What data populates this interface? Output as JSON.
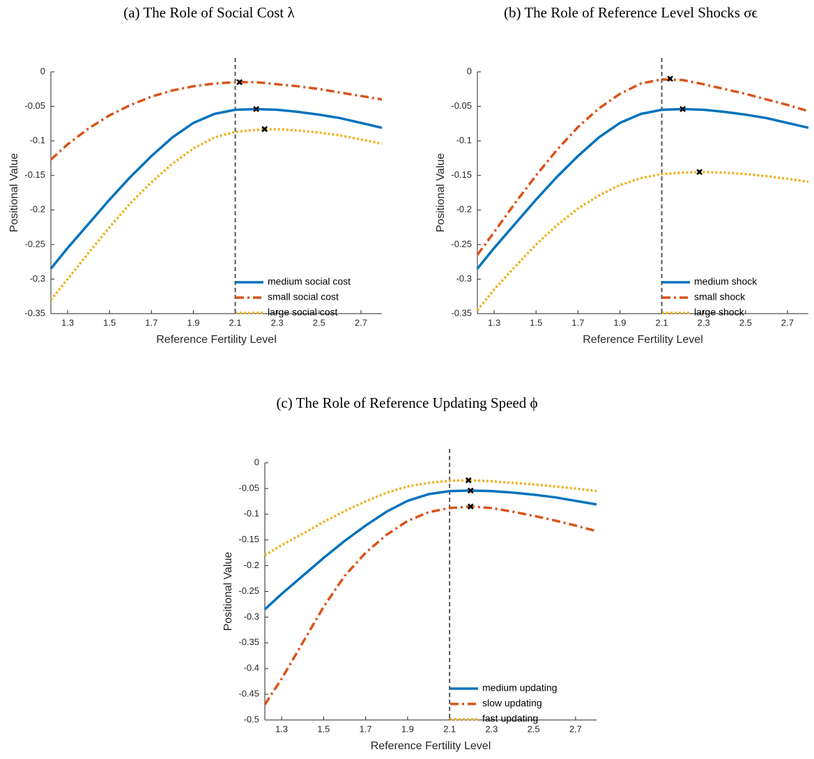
{
  "chart_data": [
    {
      "type": "line",
      "title": "(a) The Role of Social Cost λ",
      "x_label": "Reference Fertility Level",
      "y_label": "Positional Value",
      "x": [
        1.22,
        1.3,
        1.4,
        1.5,
        1.6,
        1.7,
        1.8,
        1.9,
        2.0,
        2.1,
        2.2,
        2.3,
        2.4,
        2.5,
        2.6,
        2.7,
        2.8
      ],
      "xlim": [
        1.22,
        2.8
      ],
      "xticks": [
        1.3,
        1.5,
        1.7,
        1.9,
        2.1,
        2.3,
        2.5,
        2.7
      ],
      "ylim": [
        -0.35,
        0
      ],
      "yticks": [
        0,
        -0.05,
        -0.1,
        -0.15,
        -0.2,
        -0.25,
        -0.3,
        -0.35
      ],
      "vline": 2.1,
      "legend": "lower right",
      "series": [
        {
          "name": "medium social cost",
          "color": "#0072bd",
          "dash": "solid",
          "values": [
            -0.285,
            -0.255,
            -0.22,
            -0.185,
            -0.152,
            -0.122,
            -0.095,
            -0.074,
            -0.061,
            -0.055,
            -0.054,
            -0.055,
            -0.058,
            -0.062,
            -0.067,
            -0.074,
            -0.081
          ],
          "peak_x": 2.2,
          "peak_y": -0.054
        },
        {
          "name": "small social cost",
          "color": "#d95319",
          "dash": "dashdot",
          "values": [
            -0.127,
            -0.105,
            -0.082,
            -0.063,
            -0.048,
            -0.036,
            -0.027,
            -0.021,
            -0.017,
            -0.015,
            -0.015,
            -0.018,
            -0.021,
            -0.025,
            -0.03,
            -0.035,
            -0.04
          ],
          "peak_x": 2.12,
          "peak_y": -0.015
        },
        {
          "name": "large social cost",
          "color": "#edb120",
          "dash": "dotted",
          "values": [
            -0.33,
            -0.3,
            -0.262,
            -0.225,
            -0.19,
            -0.16,
            -0.133,
            -0.111,
            -0.095,
            -0.087,
            -0.084,
            -0.083,
            -0.085,
            -0.088,
            -0.092,
            -0.098,
            -0.104
          ],
          "peak_x": 2.24,
          "peak_y": -0.083
        }
      ]
    },
    {
      "type": "line",
      "title": "(b) The Role of Reference Level Shocks σϵ",
      "x_label": "Reference Fertility Level",
      "y_label": "Positional Value",
      "x": [
        1.22,
        1.3,
        1.4,
        1.5,
        1.6,
        1.7,
        1.8,
        1.9,
        2.0,
        2.1,
        2.2,
        2.3,
        2.4,
        2.5,
        2.6,
        2.7,
        2.8
      ],
      "xlim": [
        1.22,
        2.8
      ],
      "xticks": [
        1.3,
        1.5,
        1.7,
        1.9,
        2.1,
        2.3,
        2.5,
        2.7
      ],
      "ylim": [
        -0.35,
        0
      ],
      "yticks": [
        0,
        -0.05,
        -0.1,
        -0.15,
        -0.2,
        -0.25,
        -0.3,
        -0.35
      ],
      "vline": 2.1,
      "legend": "lower right",
      "series": [
        {
          "name": "medium shock",
          "color": "#0072bd",
          "dash": "solid",
          "values": [
            -0.285,
            -0.255,
            -0.22,
            -0.185,
            -0.152,
            -0.122,
            -0.095,
            -0.074,
            -0.061,
            -0.055,
            -0.054,
            -0.055,
            -0.058,
            -0.062,
            -0.067,
            -0.074,
            -0.081
          ],
          "peak_x": 2.2,
          "peak_y": -0.054
        },
        {
          "name": "small shock",
          "color": "#d95319",
          "dash": "dashdot",
          "values": [
            -0.265,
            -0.232,
            -0.19,
            -0.15,
            -0.113,
            -0.08,
            -0.053,
            -0.032,
            -0.017,
            -0.011,
            -0.012,
            -0.018,
            -0.025,
            -0.032,
            -0.04,
            -0.048,
            -0.057
          ],
          "peak_x": 2.14,
          "peak_y": -0.01
        },
        {
          "name": "large shock",
          "color": "#edb120",
          "dash": "dotted",
          "values": [
            -0.345,
            -0.315,
            -0.282,
            -0.25,
            -0.222,
            -0.198,
            -0.179,
            -0.164,
            -0.154,
            -0.148,
            -0.146,
            -0.145,
            -0.146,
            -0.148,
            -0.151,
            -0.155,
            -0.159
          ],
          "peak_x": 2.28,
          "peak_y": -0.145
        }
      ]
    },
    {
      "type": "line",
      "title": "(c) The Role of Reference Updating Speed ϕ",
      "x_label": "Reference Fertility Level",
      "y_label": "Positional Value",
      "x": [
        1.22,
        1.3,
        1.4,
        1.5,
        1.6,
        1.7,
        1.8,
        1.9,
        2.0,
        2.1,
        2.2,
        2.3,
        2.4,
        2.5,
        2.6,
        2.7,
        2.8
      ],
      "xlim": [
        1.22,
        2.8
      ],
      "xticks": [
        1.3,
        1.5,
        1.7,
        1.9,
        2.1,
        2.3,
        2.5,
        2.7
      ],
      "ylim": [
        -0.5,
        0
      ],
      "yticks": [
        0,
        -0.05,
        -0.1,
        -0.15,
        -0.2,
        -0.25,
        -0.3,
        -0.35,
        -0.4,
        -0.45,
        -0.5
      ],
      "vline": 2.1,
      "legend": "lower right",
      "series": [
        {
          "name": "medium updating",
          "color": "#0072bd",
          "dash": "solid",
          "values": [
            -0.285,
            -0.255,
            -0.22,
            -0.185,
            -0.152,
            -0.122,
            -0.095,
            -0.074,
            -0.061,
            -0.055,
            -0.054,
            -0.055,
            -0.058,
            -0.062,
            -0.067,
            -0.074,
            -0.081
          ],
          "peak_x": 2.2,
          "peak_y": -0.054
        },
        {
          "name": "slow updating",
          "color": "#d95319",
          "dash": "dashdot",
          "values": [
            -0.47,
            -0.42,
            -0.35,
            -0.28,
            -0.22,
            -0.175,
            -0.14,
            -0.113,
            -0.096,
            -0.088,
            -0.085,
            -0.088,
            -0.095,
            -0.103,
            -0.112,
            -0.122,
            -0.133
          ],
          "peak_x": 2.2,
          "peak_y": -0.085
        },
        {
          "name": "fast updating",
          "color": "#edb120",
          "dash": "dotted",
          "values": [
            -0.18,
            -0.16,
            -0.138,
            -0.115,
            -0.094,
            -0.075,
            -0.058,
            -0.046,
            -0.039,
            -0.035,
            -0.034,
            -0.036,
            -0.039,
            -0.042,
            -0.046,
            -0.05,
            -0.055
          ],
          "peak_x": 2.19,
          "peak_y": -0.034
        }
      ]
    }
  ]
}
